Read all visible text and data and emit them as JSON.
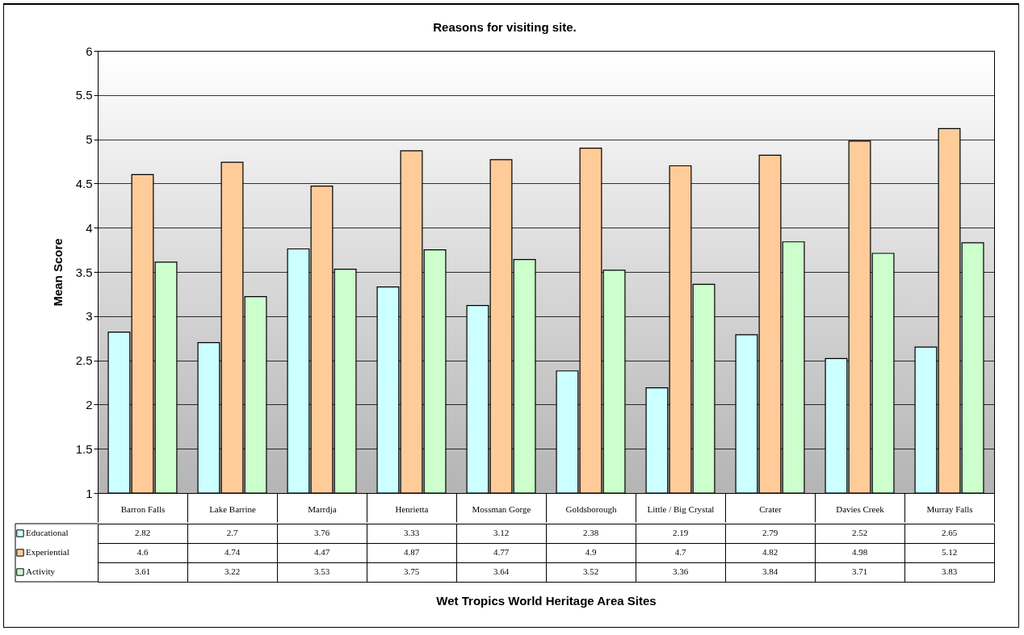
{
  "chart_data": {
    "type": "bar",
    "title": "Reasons for visiting site.",
    "annotations": [
      "Wet Tropics World Heritage Area  Sites"
    ],
    "ylabel": "Mean Score",
    "categories": [
      "Barron Falls",
      "Lake Barrine",
      "Marrdja",
      "Henrietta",
      "Mossman Gorge",
      "Goldsborough",
      "Little / Big Crystal",
      "Crater",
      "Davies Creek",
      "Murray Falls"
    ],
    "series": [
      {
        "name": "Educational",
        "color": "#ccffff",
        "values": [
          2.82,
          2.7,
          3.76,
          3.33,
          3.12,
          2.38,
          2.19,
          2.79,
          2.52,
          2.65
        ]
      },
      {
        "name": "Experiential",
        "color": "#ffcc99",
        "values": [
          4.6,
          4.74,
          4.47,
          4.87,
          4.77,
          4.9,
          4.7,
          4.82,
          4.98,
          5.12
        ]
      },
      {
        "name": "Activity",
        "color": "#ccffcc",
        "values": [
          3.61,
          3.22,
          3.53,
          3.75,
          3.64,
          3.52,
          3.36,
          3.84,
          3.71,
          3.83
        ]
      }
    ],
    "ylim": [
      1,
      6
    ],
    "yticks": [
      1,
      1.5,
      2,
      2.5,
      3,
      3.5,
      4,
      4.5,
      5,
      5.5,
      6
    ],
    "grid": "y",
    "legend": "bottom",
    "data_labels": true
  }
}
